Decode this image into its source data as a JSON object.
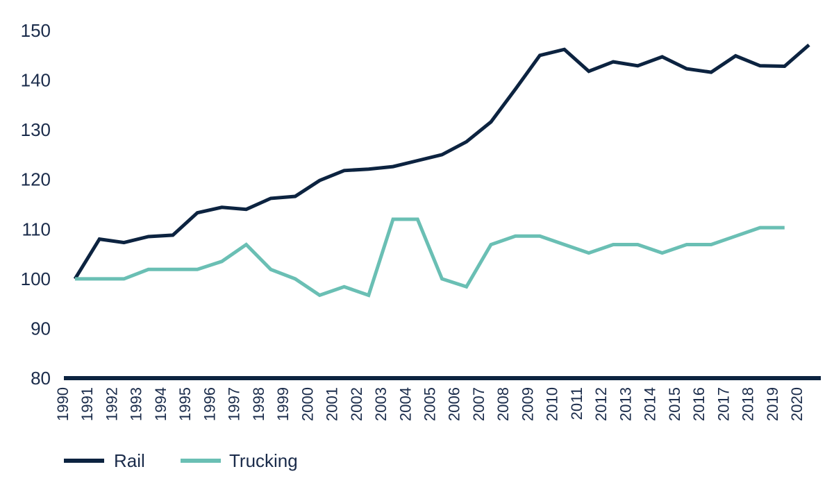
{
  "chart_data": {
    "type": "line",
    "title": "",
    "xlabel": "",
    "ylabel": "",
    "ylim": [
      80,
      150
    ],
    "yticks": [
      80,
      90,
      100,
      110,
      120,
      130,
      140,
      150
    ],
    "grid": false,
    "legend": "bottom-left",
    "x": [
      "1990",
      "1991",
      "1992",
      "1993",
      "1994",
      "1995",
      "1996",
      "1997",
      "1998",
      "1999",
      "2000",
      "2001",
      "2002",
      "2003",
      "2004",
      "2005",
      "2006",
      "2007",
      "2008",
      "2009",
      "2010",
      "2011",
      "2012",
      "2013",
      "2014",
      "2015",
      "2016",
      "2017",
      "2018",
      "2019",
      "2020"
    ],
    "series": [
      {
        "name": "Rail",
        "color": "#0c2340",
        "values": [
          100,
          108,
          107.3,
          108.5,
          108.8,
          113.3,
          114.4,
          114,
          116.2,
          116.6,
          119.8,
          121.8,
          122.1,
          122.6,
          123.8,
          125,
          127.6,
          131.6,
          138.2,
          145,
          146.2,
          141.8,
          143.7,
          142.9,
          144.7,
          142.3,
          141.6,
          144.9,
          142.9,
          142.8,
          147.1
        ]
      },
      {
        "name": "Trucking",
        "color": "#6abfb4",
        "values": [
          100,
          100,
          100,
          101.9,
          101.9,
          101.9,
          103.5,
          106.9,
          101.9,
          100,
          96.7,
          98.4,
          96.7,
          112,
          112,
          100,
          98.4,
          106.9,
          108.6,
          108.6,
          106.9,
          105.2,
          106.9,
          106.9,
          105.2,
          106.9,
          106.9,
          108.6,
          110.3,
          110.3,
          null
        ]
      }
    ]
  }
}
